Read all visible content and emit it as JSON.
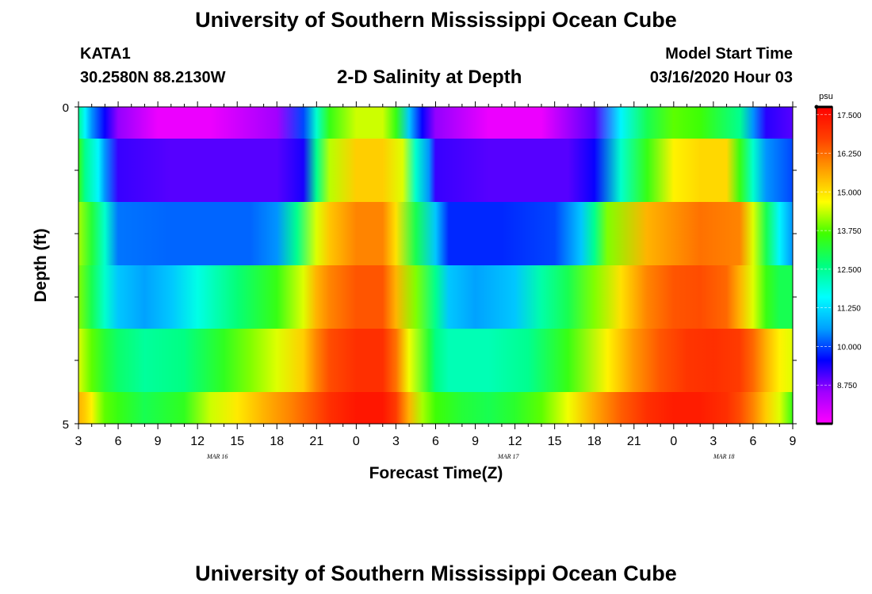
{
  "header": {
    "title": "University of Southern Mississippi Ocean Cube",
    "station": "KATA1",
    "coords": "30.2580N 88.2130W",
    "subtitle": "2-D Salinity at Depth",
    "model_start_label": "Model Start Time",
    "model_start_value": "03/16/2020 Hour 03"
  },
  "footer": {
    "title": "University of Southern Mississippi Ocean Cube"
  },
  "chart_data": {
    "type": "heatmap",
    "xlabel": "Forecast Time(Z)",
    "ylabel": "Depth (ft)",
    "y_tick_labels": [
      "0",
      "5"
    ],
    "ylim": [
      0,
      5
    ],
    "x_tick_labels": [
      "3",
      "6",
      "9",
      "12",
      "15",
      "18",
      "21",
      "0",
      "3",
      "6",
      "9",
      "12",
      "15",
      "18",
      "21",
      "0",
      "3",
      "6",
      "9"
    ],
    "x_tick_hours": [
      3,
      6,
      9,
      12,
      15,
      18,
      21,
      24,
      27,
      30,
      33,
      36,
      39,
      42,
      45,
      48,
      51,
      54,
      57
    ],
    "date_labels": [
      {
        "label": "MAR 16",
        "hour": 13.5
      },
      {
        "label": "MAR 17",
        "hour": 35.5
      },
      {
        "label": "MAR 18",
        "hour": 51.8
      }
    ],
    "colorbar": {
      "unit": "psu",
      "min": 7.5,
      "max": 17.75,
      "tick_values": [
        17.5,
        16.25,
        15.0,
        13.75,
        12.5,
        11.25,
        10.0,
        8.75
      ],
      "tick_labels": [
        "17.500",
        "16.250",
        "15.000",
        "13.750",
        "12.500",
        "11.250",
        "10.000",
        "8.750"
      ],
      "colors": [
        "#ff00ff",
        "#a000ff",
        "#0000ff",
        "#00a0ff",
        "#00ffff",
        "#00ff80",
        "#40ff00",
        "#ffff00",
        "#ffa000",
        "#ff4000",
        "#ff0000"
      ]
    },
    "depth_layer_boundaries": [
      0,
      0.5,
      1.5,
      2.5,
      3.5,
      4.5,
      5
    ],
    "x_range_hours": [
      3,
      57
    ],
    "layers": [
      {
        "hours": [
          3,
          3.5,
          4,
          5,
          6,
          9,
          13,
          18,
          20,
          21,
          22,
          24,
          26,
          27,
          28,
          29,
          30,
          34,
          38,
          42,
          44,
          46,
          48,
          50,
          53,
          54,
          55,
          57
        ],
        "values": [
          12.5,
          11.5,
          10.5,
          9.5,
          8.6,
          7.7,
          7.7,
          8.5,
          10,
          12,
          13.5,
          14.4,
          14.4,
          13.5,
          11,
          9.5,
          8.6,
          7.7,
          7.7,
          9,
          11.5,
          13,
          13.8,
          13.6,
          12.5,
          10.5,
          9.3,
          9.0
        ]
      },
      {
        "hours": [
          3,
          3.5,
          4.5,
          5,
          6,
          10,
          18,
          20,
          21,
          22,
          24,
          26,
          27.5,
          28.5,
          29.5,
          30,
          34,
          40,
          42,
          44,
          46,
          48,
          50,
          52,
          53,
          54,
          55,
          57
        ],
        "values": [
          13.5,
          12.5,
          11.5,
          10.5,
          9.2,
          9.0,
          9.0,
          9.4,
          12.5,
          14.3,
          15.2,
          15.2,
          14.5,
          12,
          10.5,
          9.2,
          9.0,
          9.0,
          9.5,
          12,
          13.5,
          14.8,
          15.1,
          15.1,
          13.5,
          12,
          10.5,
          10.0
        ]
      },
      {
        "hours": [
          3,
          4,
          5,
          6,
          10,
          16,
          18,
          19.5,
          21,
          22,
          24,
          26,
          27,
          28.5,
          30,
          31,
          35,
          39,
          41,
          42,
          43,
          46,
          50,
          53,
          54,
          55,
          56,
          57
        ],
        "values": [
          14.2,
          13.2,
          12,
          10.3,
          10.2,
          10.2,
          10.5,
          12.5,
          14.5,
          15.3,
          16.0,
          16.0,
          15.0,
          13,
          11,
          9.8,
          9.8,
          10.0,
          11,
          12.5,
          14,
          15.5,
          16.2,
          16.0,
          14.5,
          13,
          11.5,
          10.5
        ]
      },
      {
        "hours": [
          3,
          4,
          5,
          6,
          8,
          10,
          12,
          15,
          18,
          20,
          21,
          22,
          24,
          26,
          27,
          28.5,
          30,
          31,
          33,
          36,
          38,
          40,
          42,
          44,
          46,
          48,
          50,
          52,
          53,
          54,
          55,
          56,
          57
        ],
        "values": [
          14.0,
          13.0,
          12.0,
          11.0,
          10.6,
          11.0,
          11.8,
          12.7,
          13.5,
          14.5,
          15.5,
          16.0,
          16.5,
          16.5,
          15.5,
          14,
          12.5,
          11,
          10.6,
          11.0,
          12.3,
          13,
          14,
          15,
          16,
          16.5,
          16.6,
          16.3,
          15.5,
          14.5,
          13.5,
          13.0,
          13.0
        ]
      },
      {
        "hours": [
          3,
          4,
          5,
          6,
          8,
          11,
          14,
          16,
          18,
          20,
          21,
          22,
          24,
          26,
          27,
          28,
          29.5,
          30,
          31,
          34,
          37,
          40,
          43,
          45,
          47,
          49,
          51,
          53,
          54,
          55,
          56,
          57
        ],
        "values": [
          14.5,
          13.8,
          13.2,
          12.8,
          12.4,
          12.6,
          13.4,
          14.0,
          14.5,
          15.2,
          16.0,
          16.6,
          17.0,
          17.0,
          16.2,
          14.6,
          13.2,
          12.6,
          12.2,
          12.2,
          12.5,
          13.5,
          14.8,
          15.8,
          16.5,
          16.9,
          17.0,
          16.8,
          16.3,
          15.5,
          14.8,
          14.5
        ]
      },
      {
        "hours": [
          3,
          3.5,
          4,
          4.5,
          5,
          6,
          8,
          11,
          13,
          15,
          17,
          19,
          21,
          22,
          24,
          26,
          27,
          28,
          29,
          30,
          32,
          34,
          36,
          38,
          40,
          42,
          44,
          46,
          48,
          50,
          52,
          53,
          54,
          55,
          56,
          57
        ],
        "values": [
          15.5,
          15.2,
          14.8,
          14.2,
          13.8,
          13.5,
          13.0,
          13.4,
          14.4,
          14.9,
          15.5,
          16.0,
          16.6,
          17.0,
          17.4,
          17.4,
          16.8,
          15.5,
          14.2,
          13.6,
          13.2,
          13.0,
          13.3,
          13.8,
          14.6,
          15.6,
          16.4,
          17.0,
          17.3,
          17.3,
          17.0,
          16.6,
          16.0,
          15.2,
          14.5,
          13.5
        ]
      }
    ]
  }
}
